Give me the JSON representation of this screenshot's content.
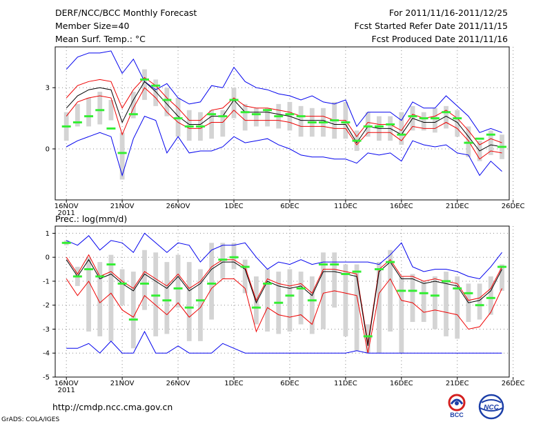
{
  "header": {
    "title": "DERF/NCC/BCC Monthly Forecast",
    "member_size": "Member Size=40",
    "variable": "Mean Surf. Temp.: °C",
    "period": "For 2011/11/16-2011/12/25",
    "fcst_started": "Fcst Started Refer Date 2011/11/15",
    "fcst_produced": "Fcst Produced Date 2011/11/16"
  },
  "footer": {
    "url": "http://cmdp.ncc.cma.gov.cn",
    "credit": "GrADS: COLA/IGES",
    "logo_bcc": "BCC",
    "logo_ncc": "NCC"
  },
  "colors": {
    "min_max": "#0000ee",
    "spread": "#ee0000",
    "mean": "#000000",
    "box": "#d4d4d4",
    "median": "#33ee33",
    "grid": "#888888"
  },
  "chart_data": [
    {
      "type": "line",
      "title": "Mean Surf. Temp.: °C",
      "x_tick_labels": [
        "16NOV\n2011",
        "21NOV",
        "26NOV",
        "1DEC",
        "6DEC",
        "11DEC",
        "16DEC",
        "21DEC",
        "26DEC"
      ],
      "ylim": [
        -2.5,
        5
      ],
      "y_ticks": [
        0,
        3
      ],
      "days": 40,
      "series": [
        {
          "name": "max",
          "color": "#0000ee",
          "values": [
            3.9,
            4.5,
            4.7,
            4.7,
            4.8,
            3.7,
            4.4,
            3.3,
            2.9,
            3.2,
            2.5,
            2.2,
            2.3,
            3.1,
            3.0,
            4.0,
            3.3,
            3.0,
            2.9,
            2.7,
            2.6,
            2.4,
            2.6,
            2.3,
            2.2,
            2.4,
            1.1,
            1.8,
            1.8,
            1.8,
            1.4,
            2.3,
            2.0,
            2.0,
            2.6,
            2.1,
            1.6,
            0.8,
            1.0,
            0.8
          ]
        },
        {
          "name": "upper",
          "color": "#ee0000",
          "values": [
            2.5,
            3.1,
            3.3,
            3.4,
            3.3,
            2.0,
            2.9,
            3.5,
            3.1,
            2.5,
            2.0,
            1.4,
            1.4,
            1.9,
            2.0,
            2.5,
            2.1,
            2.0,
            2.0,
            1.9,
            1.8,
            1.6,
            1.6,
            1.6,
            1.4,
            1.4,
            0.6,
            1.3,
            1.2,
            1.2,
            0.9,
            1.7,
            1.5,
            1.6,
            1.9,
            1.5,
            0.9,
            0.2,
            0.5,
            0.3
          ]
        },
        {
          "name": "mean",
          "color": "#000000",
          "values": [
            2.0,
            2.6,
            2.9,
            3.0,
            2.9,
            1.3,
            2.4,
            3.3,
            2.8,
            2.2,
            1.6,
            1.2,
            1.2,
            1.6,
            1.6,
            2.4,
            1.8,
            1.8,
            1.8,
            1.7,
            1.6,
            1.4,
            1.4,
            1.4,
            1.2,
            1.2,
            0.3,
            1.1,
            1.0,
            1.0,
            0.7,
            1.5,
            1.3,
            1.3,
            1.6,
            1.3,
            0.6,
            -0.1,
            0.2,
            0.1
          ]
        },
        {
          "name": "lower",
          "color": "#ee0000",
          "values": [
            1.6,
            2.3,
            2.5,
            2.6,
            2.5,
            0.7,
            2.0,
            3.0,
            2.5,
            1.8,
            1.3,
            1.0,
            1.0,
            1.3,
            1.3,
            1.9,
            1.4,
            1.4,
            1.4,
            1.4,
            1.3,
            1.1,
            1.1,
            1.1,
            1.0,
            1.0,
            0.2,
            0.8,
            0.8,
            0.8,
            0.4,
            1.1,
            1.0,
            1.0,
            1.3,
            1.0,
            0.4,
            -0.5,
            -0.1,
            -0.2
          ]
        },
        {
          "name": "min",
          "color": "#0000ee",
          "values": [
            0.1,
            0.4,
            0.6,
            0.8,
            0.6,
            -1.3,
            0.5,
            1.6,
            1.4,
            -0.2,
            0.6,
            -0.2,
            -0.1,
            -0.1,
            0.1,
            0.6,
            0.3,
            0.4,
            0.5,
            0.2,
            0.0,
            -0.3,
            -0.4,
            -0.4,
            -0.5,
            -0.5,
            -0.7,
            -0.2,
            -0.3,
            -0.2,
            -0.6,
            0.4,
            0.2,
            0.1,
            0.2,
            -0.2,
            -0.3,
            -1.3,
            -0.6,
            -1.1
          ]
        }
      ],
      "boxes": {
        "high": [
          1.8,
          2.2,
          2.5,
          2.8,
          2.4,
          0.8,
          2.8,
          3.9,
          3.4,
          3.0,
          2.5,
          1.9,
          1.8,
          1.9,
          1.9,
          3.0,
          2.2,
          2.0,
          2.0,
          2.2,
          2.3,
          2.1,
          2.0,
          2.0,
          2.3,
          2.3,
          0.9,
          1.8,
          1.6,
          1.6,
          1.8,
          2.1,
          1.8,
          2.0,
          2.1,
          1.9,
          1.1,
          0.4,
          0.9,
          0.7
        ],
        "low": [
          0.4,
          1.1,
          1.1,
          1.2,
          1.4,
          -1.5,
          1.5,
          2.4,
          2.1,
          1.6,
          0.6,
          0.4,
          0.4,
          0.5,
          0.6,
          1.5,
          0.9,
          1.1,
          1.1,
          1.0,
          0.9,
          0.6,
          0.6,
          0.6,
          0.5,
          0.5,
          -0.1,
          0.6,
          0.4,
          0.4,
          0.2,
          0.9,
          0.9,
          0.8,
          1.0,
          0.6,
          -0.4,
          -0.6,
          -0.3,
          -0.5
        ],
        "median": [
          1.1,
          1.3,
          1.6,
          1.9,
          1.0,
          -0.2,
          1.7,
          3.4,
          3.1,
          2.4,
          1.5,
          1.1,
          1.1,
          1.7,
          1.6,
          2.4,
          1.8,
          1.7,
          1.9,
          1.6,
          1.7,
          1.6,
          1.3,
          1.3,
          1.4,
          1.3,
          0.4,
          1.1,
          1.1,
          1.2,
          0.7,
          1.6,
          1.5,
          1.5,
          1.8,
          1.5,
          0.3,
          0.5,
          0.7,
          0.1
        ]
      }
    },
    {
      "type": "line",
      "title": "Prec.: log(mm/d)",
      "x_tick_labels": [
        "16NOV\n2011",
        "21NOV",
        "26NOV",
        "1DEC",
        "6DEC",
        "11DEC",
        "16DEC",
        "21DEC",
        "26DEC"
      ],
      "ylim": [
        -5,
        1.3
      ],
      "y_ticks": [
        -5,
        -4,
        -3,
        -2,
        -1,
        0,
        1
      ],
      "days": 40,
      "series": [
        {
          "name": "max",
          "color": "#0000ee",
          "values": [
            0.7,
            0.5,
            0.9,
            0.3,
            0.7,
            0.6,
            0.2,
            1.0,
            0.6,
            0.2,
            0.6,
            0.5,
            -0.2,
            0.3,
            0.5,
            0.5,
            0.6,
            0.0,
            -0.5,
            -0.2,
            -0.3,
            -0.1,
            -0.3,
            -0.2,
            -0.2,
            -0.2,
            -0.2,
            -0.2,
            -0.3,
            0.1,
            0.6,
            -0.4,
            -0.6,
            -0.5,
            -0.5,
            -0.6,
            -0.8,
            -0.9,
            -0.4,
            0.2
          ]
        },
        {
          "name": "upper",
          "color": "#ee0000",
          "values": [
            0.0,
            -0.7,
            0.1,
            -0.8,
            -0.6,
            -1.0,
            -1.3,
            -0.6,
            -0.9,
            -1.2,
            -0.7,
            -1.3,
            -1.0,
            -0.4,
            -0.1,
            -0.1,
            -0.4,
            -1.8,
            -0.9,
            -1.1,
            -1.2,
            -1.1,
            -1.5,
            -0.5,
            -0.5,
            -0.6,
            -0.7,
            -3.6,
            -0.5,
            -0.1,
            -0.8,
            -0.8,
            -1.0,
            -0.9,
            -1.0,
            -1.1,
            -1.8,
            -1.7,
            -1.3,
            -0.4
          ]
        },
        {
          "name": "mean",
          "color": "#000000",
          "values": [
            -0.1,
            -0.8,
            -0.1,
            -0.9,
            -0.7,
            -1.1,
            -1.4,
            -0.7,
            -1.0,
            -1.3,
            -0.8,
            -1.4,
            -1.1,
            -0.5,
            -0.2,
            -0.2,
            -0.5,
            -1.9,
            -1.0,
            -1.2,
            -1.3,
            -1.2,
            -1.6,
            -0.6,
            -0.6,
            -0.7,
            -0.8,
            -3.7,
            -0.6,
            -0.2,
            -0.9,
            -0.9,
            -1.1,
            -1.0,
            -1.1,
            -1.2,
            -1.9,
            -1.8,
            -1.4,
            -0.5
          ]
        },
        {
          "name": "lower",
          "color": "#ee0000",
          "values": [
            -0.9,
            -1.6,
            -1.0,
            -1.9,
            -1.5,
            -2.2,
            -2.5,
            -1.6,
            -2.0,
            -2.4,
            -1.9,
            -2.5,
            -2.1,
            -1.3,
            -0.9,
            -0.9,
            -1.3,
            -3.1,
            -2.1,
            -2.4,
            -2.5,
            -2.4,
            -2.8,
            -1.5,
            -1.4,
            -1.5,
            -1.6,
            -4.0,
            -1.5,
            -0.9,
            -1.8,
            -1.9,
            -2.3,
            -2.2,
            -2.3,
            -2.4,
            -3.0,
            -2.9,
            -2.3,
            -1.3
          ]
        },
        {
          "name": "min",
          "color": "#0000ee",
          "values": [
            -3.8,
            -3.8,
            -3.6,
            -4.0,
            -3.5,
            -4.0,
            -4.0,
            -3.1,
            -4.0,
            -4.0,
            -3.7,
            -4.0,
            -4.0,
            -4.0,
            -3.6,
            -3.8,
            -4.0,
            -4.0,
            -4.0,
            -4.0,
            -4.0,
            -4.0,
            -4.0,
            -4.0,
            -4.0,
            -4.0,
            -3.9,
            -4.0,
            -4.0,
            -4.0,
            -4.0,
            -4.0,
            -4.0,
            -4.0,
            -4.0,
            -4.0,
            -4.0,
            -4.0,
            -4.0,
            -4.0
          ]
        }
      ],
      "boxes": {
        "high": [
          0.7,
          -0.4,
          0.0,
          -0.2,
          0.1,
          -0.5,
          -0.6,
          0.3,
          0.2,
          -0.2,
          0.1,
          -0.2,
          -0.5,
          0.6,
          0.6,
          0.6,
          -0.1,
          -0.8,
          -0.5,
          -0.6,
          -0.5,
          -0.6,
          -0.8,
          0.2,
          0.2,
          -0.3,
          -0.3,
          -2.8,
          -0.2,
          0.3,
          -0.8,
          -0.7,
          -1.0,
          -0.8,
          -0.6,
          -0.8,
          -1.1,
          -1.1,
          -0.8,
          -0.3
        ],
        "low": [
          0.5,
          -1.2,
          -3.1,
          -3.3,
          -3.5,
          -2.0,
          -3.8,
          -2.2,
          -3.3,
          -3.2,
          -2.1,
          -3.5,
          -3.5,
          -2.6,
          -0.9,
          -0.5,
          -1.5,
          -2.8,
          -3.1,
          -3.2,
          -3.1,
          -2.8,
          -3.2,
          -3.0,
          -2.1,
          -3.3,
          -3.9,
          -4.0,
          -4.0,
          -3.1,
          -4.0,
          -2.7,
          -2.7,
          -3.0,
          -3.3,
          -3.4,
          -2.7,
          -2.6,
          -2.4,
          -1.4
        ],
        "median": [
          0.6,
          -0.8,
          -0.5,
          -0.8,
          -0.3,
          -1.1,
          -2.6,
          -1.1,
          -1.6,
          -1.8,
          -1.3,
          -2.1,
          -1.8,
          -1.1,
          -0.1,
          0.0,
          -0.4,
          -2.1,
          -1.1,
          -1.9,
          -1.6,
          -1.3,
          -1.8,
          -0.3,
          -0.3,
          -0.7,
          -0.6,
          -3.3,
          -0.5,
          -0.2,
          -1.4,
          -1.4,
          -1.5,
          -1.6,
          -1.0,
          -1.3,
          -1.5,
          -2.0,
          -1.7,
          -0.4
        ]
      }
    }
  ]
}
